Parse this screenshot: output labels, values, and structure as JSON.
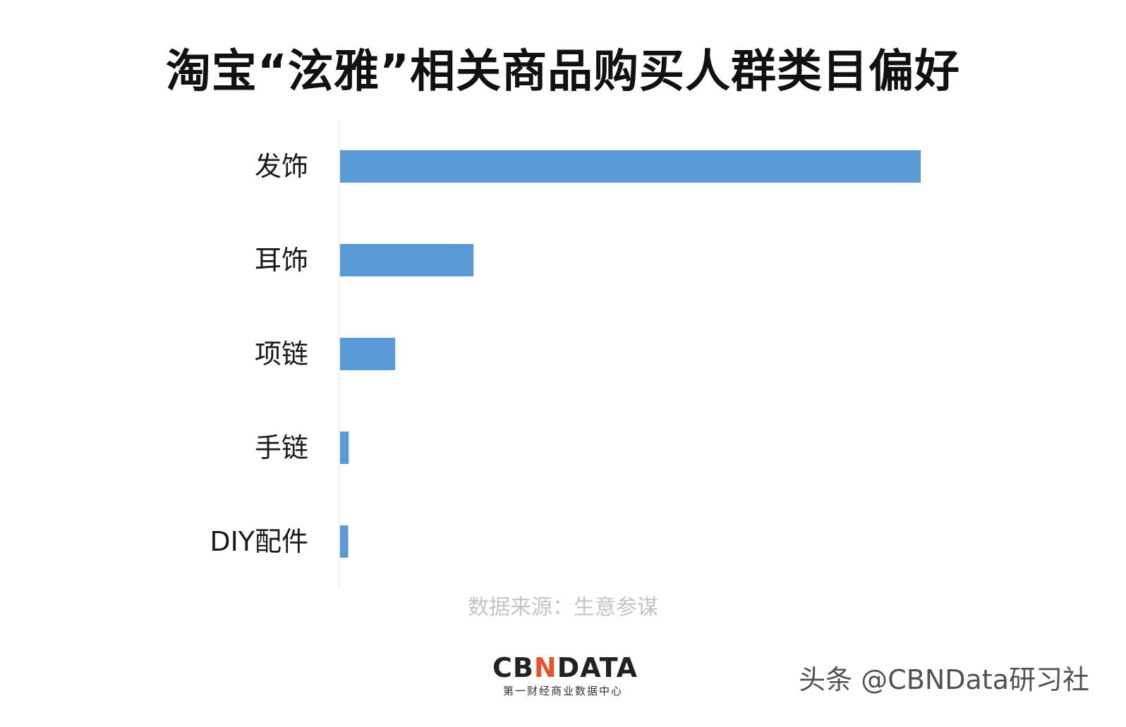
{
  "chart_data": {
    "type": "bar",
    "orientation": "horizontal",
    "title": "淘宝“泫雅”相关商品购买人群类目偏好",
    "categories": [
      "发饰",
      "耳饰",
      "项链",
      "手链",
      "DIY配件"
    ],
    "values": [
      100,
      23,
      9.5,
      1.5,
      1.4
    ],
    "xlim": [
      0,
      100
    ],
    "grid": false,
    "legend": "none",
    "bar_color": "#5b9bd5"
  },
  "source_text": "数据来源：生意参谋",
  "brand": {
    "logo_prefix": "CB",
    "logo_accent": "N",
    "logo_suffix": "DATA",
    "tagline": "第一财经商业数据中心"
  },
  "watermark": "头条 @CBNData研习社"
}
